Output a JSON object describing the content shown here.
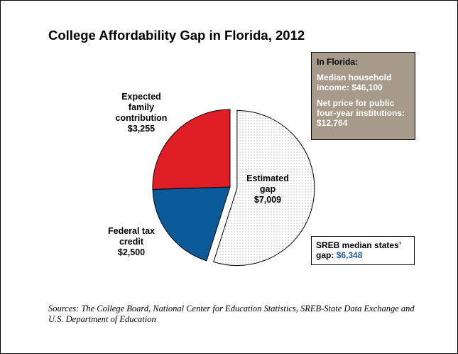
{
  "title": "College Affordability Gap in Florida, 2012",
  "chart_data": {
    "type": "pie",
    "slices": [
      {
        "name": "Estimated gap",
        "label_lines": [
          "Estimated",
          "gap",
          "$7,009"
        ],
        "value": 7009,
        "color": "#ffffff",
        "pattern": "dotted",
        "exploded": true
      },
      {
        "name": "Federal tax credit",
        "label_lines": [
          "Federal tax",
          "credit",
          "$2,500"
        ],
        "value": 2500,
        "color": "#0b5a9a",
        "pattern": "solid",
        "exploded": false
      },
      {
        "name": "Expected family contribution",
        "label_lines": [
          "Expected",
          "family",
          "contribution",
          "$3,255"
        ],
        "value": 3255,
        "color": "#e01e26",
        "pattern": "solid",
        "exploded": false
      }
    ]
  },
  "info_box": {
    "heading": "In Florida:",
    "lines": [
      "Median household income: $46,100",
      "Net price for public four-year institutions: $12,764"
    ]
  },
  "sreb_box": {
    "label": "SREB median states’ gap:",
    "value": "$6,348"
  },
  "sources": "Sources: The College Board, National Center for Education Statistics, SREB-State Data Exchange and U.S. Department of Education"
}
